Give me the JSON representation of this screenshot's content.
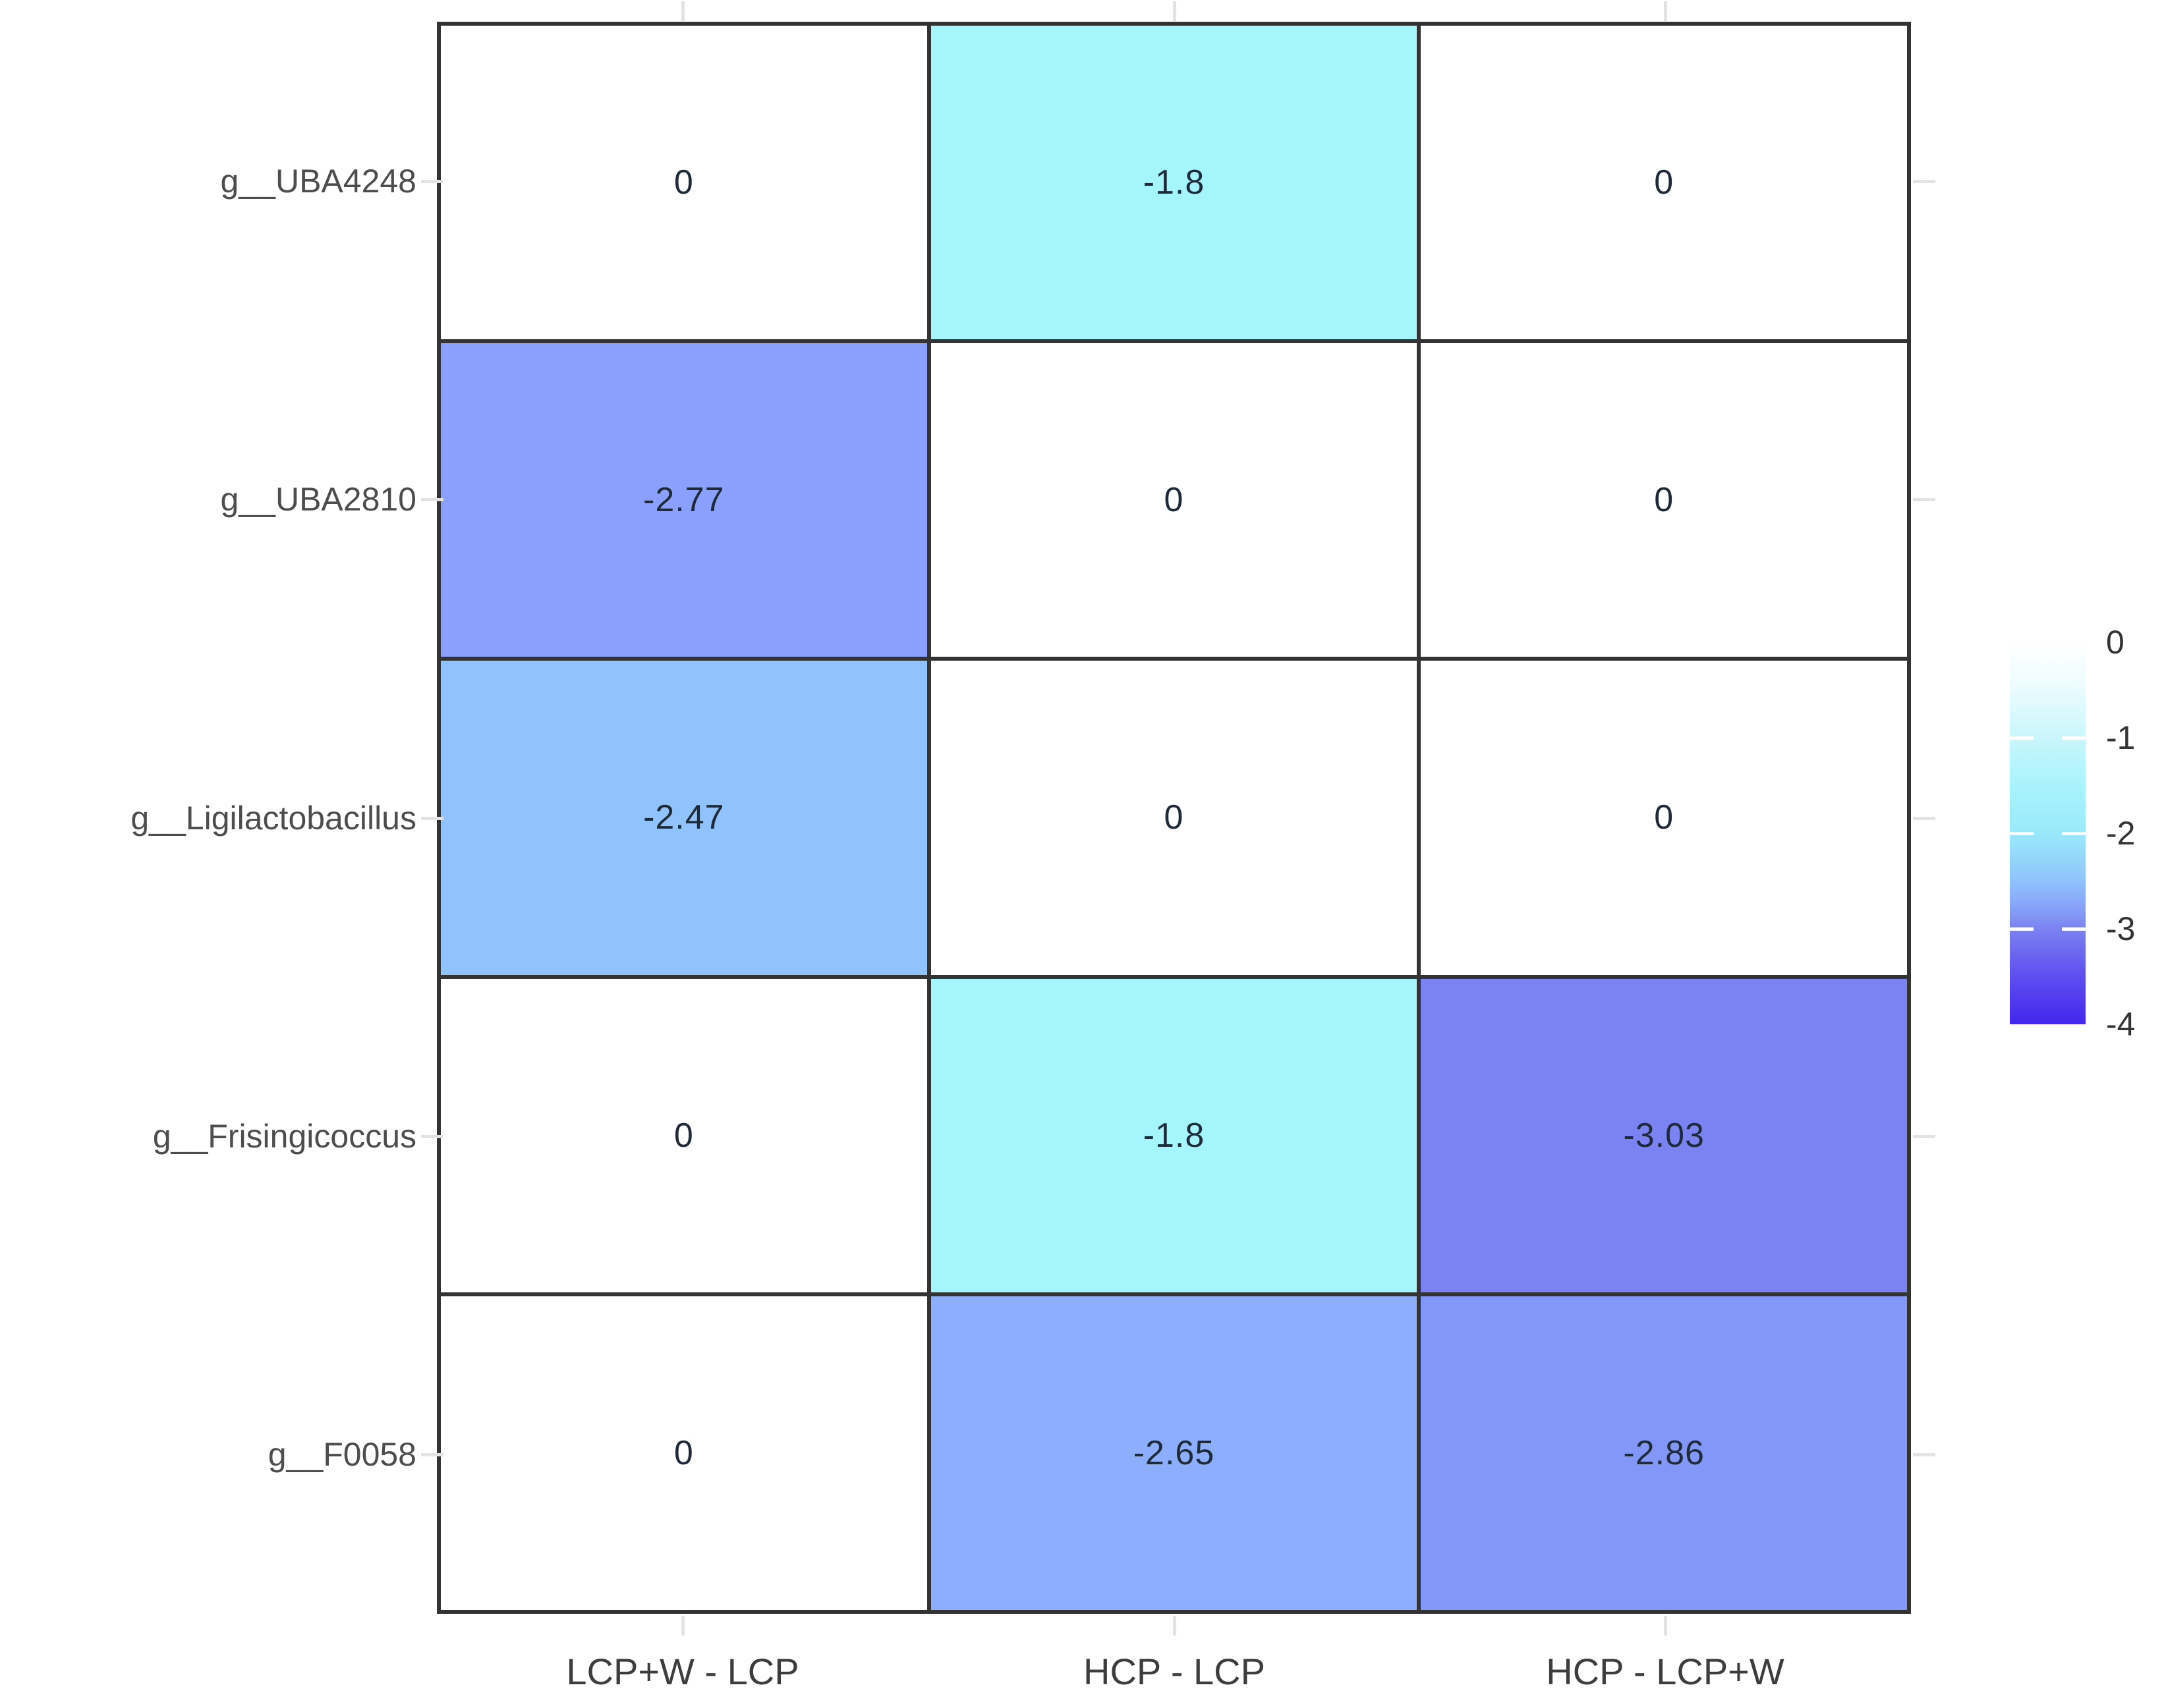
{
  "chart_data": {
    "type": "heatmap",
    "title": "",
    "xlabel": "",
    "ylabel": "",
    "x_categories": [
      "LCP+W - LCP",
      "HCP - LCP",
      "HCP - LCP+W"
    ],
    "y_categories": [
      "g__UBA4248",
      "g__UBA2810",
      "g__Ligilactobacillus",
      "g__Frisingicoccus",
      "g__F0058"
    ],
    "values": [
      [
        0,
        -1.8,
        0
      ],
      [
        -2.77,
        0,
        0
      ],
      [
        -2.47,
        0,
        0
      ],
      [
        0,
        -1.8,
        -3.03
      ],
      [
        0,
        -2.65,
        -2.86
      ]
    ],
    "cell_labels": [
      [
        "0",
        "-1.8",
        "0"
      ],
      [
        "-2.77",
        "0",
        "0"
      ],
      [
        "-2.47",
        "0",
        "0"
      ],
      [
        "0",
        "-1.8",
        "-3.03"
      ],
      [
        "0",
        "-2.65",
        "-2.86"
      ]
    ],
    "cell_colors": [
      [
        "#ffffff",
        "#a5f5fd",
        "#ffffff"
      ],
      [
        "#8aa0fc",
        "#ffffff",
        "#ffffff"
      ],
      [
        "#90c2fc",
        "#ffffff",
        "#ffffff"
      ],
      [
        "#ffffff",
        "#a5f5fd",
        "#7b83f2"
      ],
      [
        "#ffffff",
        "#8caefd",
        "#8297f8"
      ]
    ],
    "grid_on": true,
    "legend": {
      "position": "right",
      "orientation": "vertical",
      "ticks": [
        "0",
        "-1",
        "-2",
        "-3",
        "-4"
      ],
      "range_max": 0,
      "range_min": -4,
      "gradient_stops": [
        {
          "pos": "0%",
          "color": "#ffffff"
        },
        {
          "pos": "10%",
          "color": "#f0fcfe"
        },
        {
          "pos": "25%",
          "color": "#c9f6fc"
        },
        {
          "pos": "37%",
          "color": "#a9f3fc"
        },
        {
          "pos": "50%",
          "color": "#9ae9fb"
        },
        {
          "pos": "56%",
          "color": "#95d8fb"
        },
        {
          "pos": "63%",
          "color": "#8fc0fc"
        },
        {
          "pos": "69%",
          "color": "#88a4f9"
        },
        {
          "pos": "75%",
          "color": "#7b82f1"
        },
        {
          "pos": "87%",
          "color": "#5f50f0"
        },
        {
          "pos": "100%",
          "color": "#4326ee"
        }
      ]
    },
    "colors": {
      "cell_border": "#333333",
      "axis_text": "#4d4d4d",
      "x_axis_text": "#3d3d3d",
      "cell_text": "#1e2a38",
      "tick_mark": "#e3e3e3",
      "legend_text": "#333333",
      "background": "#ffffff"
    }
  }
}
